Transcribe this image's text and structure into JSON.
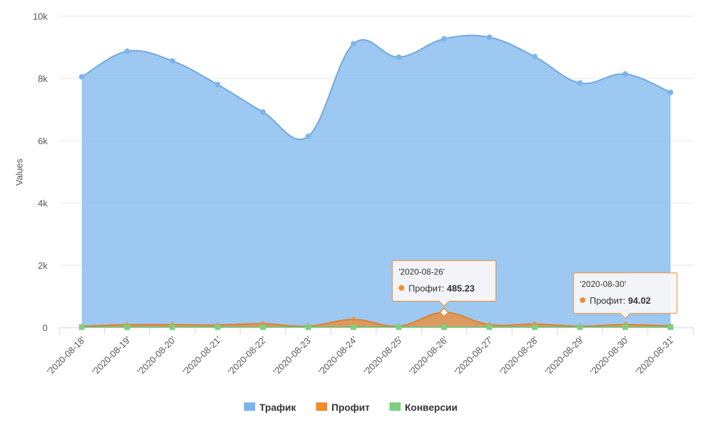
{
  "chart_data": {
    "type": "area",
    "title": "",
    "xlabel": "",
    "ylabel": "Values",
    "ylim": [
      0,
      10000
    ],
    "yticks": [
      {
        "value": 0,
        "label": "0"
      },
      {
        "value": 2000,
        "label": "2k"
      },
      {
        "value": 4000,
        "label": "4k"
      },
      {
        "value": 6000,
        "label": "6k"
      },
      {
        "value": 8000,
        "label": "8k"
      },
      {
        "value": 10000,
        "label": "10k"
      }
    ],
    "grid": true,
    "legend_position": "bottom-center",
    "categories": [
      "'2020-08-18'",
      "'2020-08-19'",
      "'2020-08-20'",
      "'2020-08-21'",
      "'2020-08-22'",
      "'2020-08-23'",
      "'2020-08-24'",
      "'2020-08-25'",
      "'2020-08-26'",
      "'2020-08-27'",
      "'2020-08-28'",
      "'2020-08-29'",
      "'2020-08-30'",
      "'2020-08-31'"
    ],
    "series": [
      {
        "name": "Трафик",
        "color": "#7cb5ec",
        "marker": "circle",
        "values": [
          8050,
          8870,
          8560,
          7800,
          6920,
          6140,
          9110,
          8680,
          9270,
          9320,
          8700,
          7850,
          8140,
          7550
        ]
      },
      {
        "name": "Профит",
        "color": "#f08c2e",
        "marker": "diamond",
        "values": [
          40,
          90,
          90,
          80,
          120,
          40,
          260,
          40,
          485.23,
          90,
          110,
          40,
          94.02,
          50
        ]
      },
      {
        "name": "Конверсии",
        "color": "#7ed07e",
        "marker": "square",
        "values": [
          10,
          10,
          10,
          10,
          10,
          10,
          10,
          10,
          10,
          10,
          10,
          10,
          10,
          10
        ]
      }
    ],
    "tooltips": [
      {
        "category": "'2020-08-26'",
        "series": "Профит",
        "label": "Профит: ",
        "value": "485.23",
        "index": 8
      },
      {
        "category": "'2020-08-30'",
        "series": "Профит",
        "label": "Профит: ",
        "value": "94.02",
        "index": 12
      }
    ]
  }
}
